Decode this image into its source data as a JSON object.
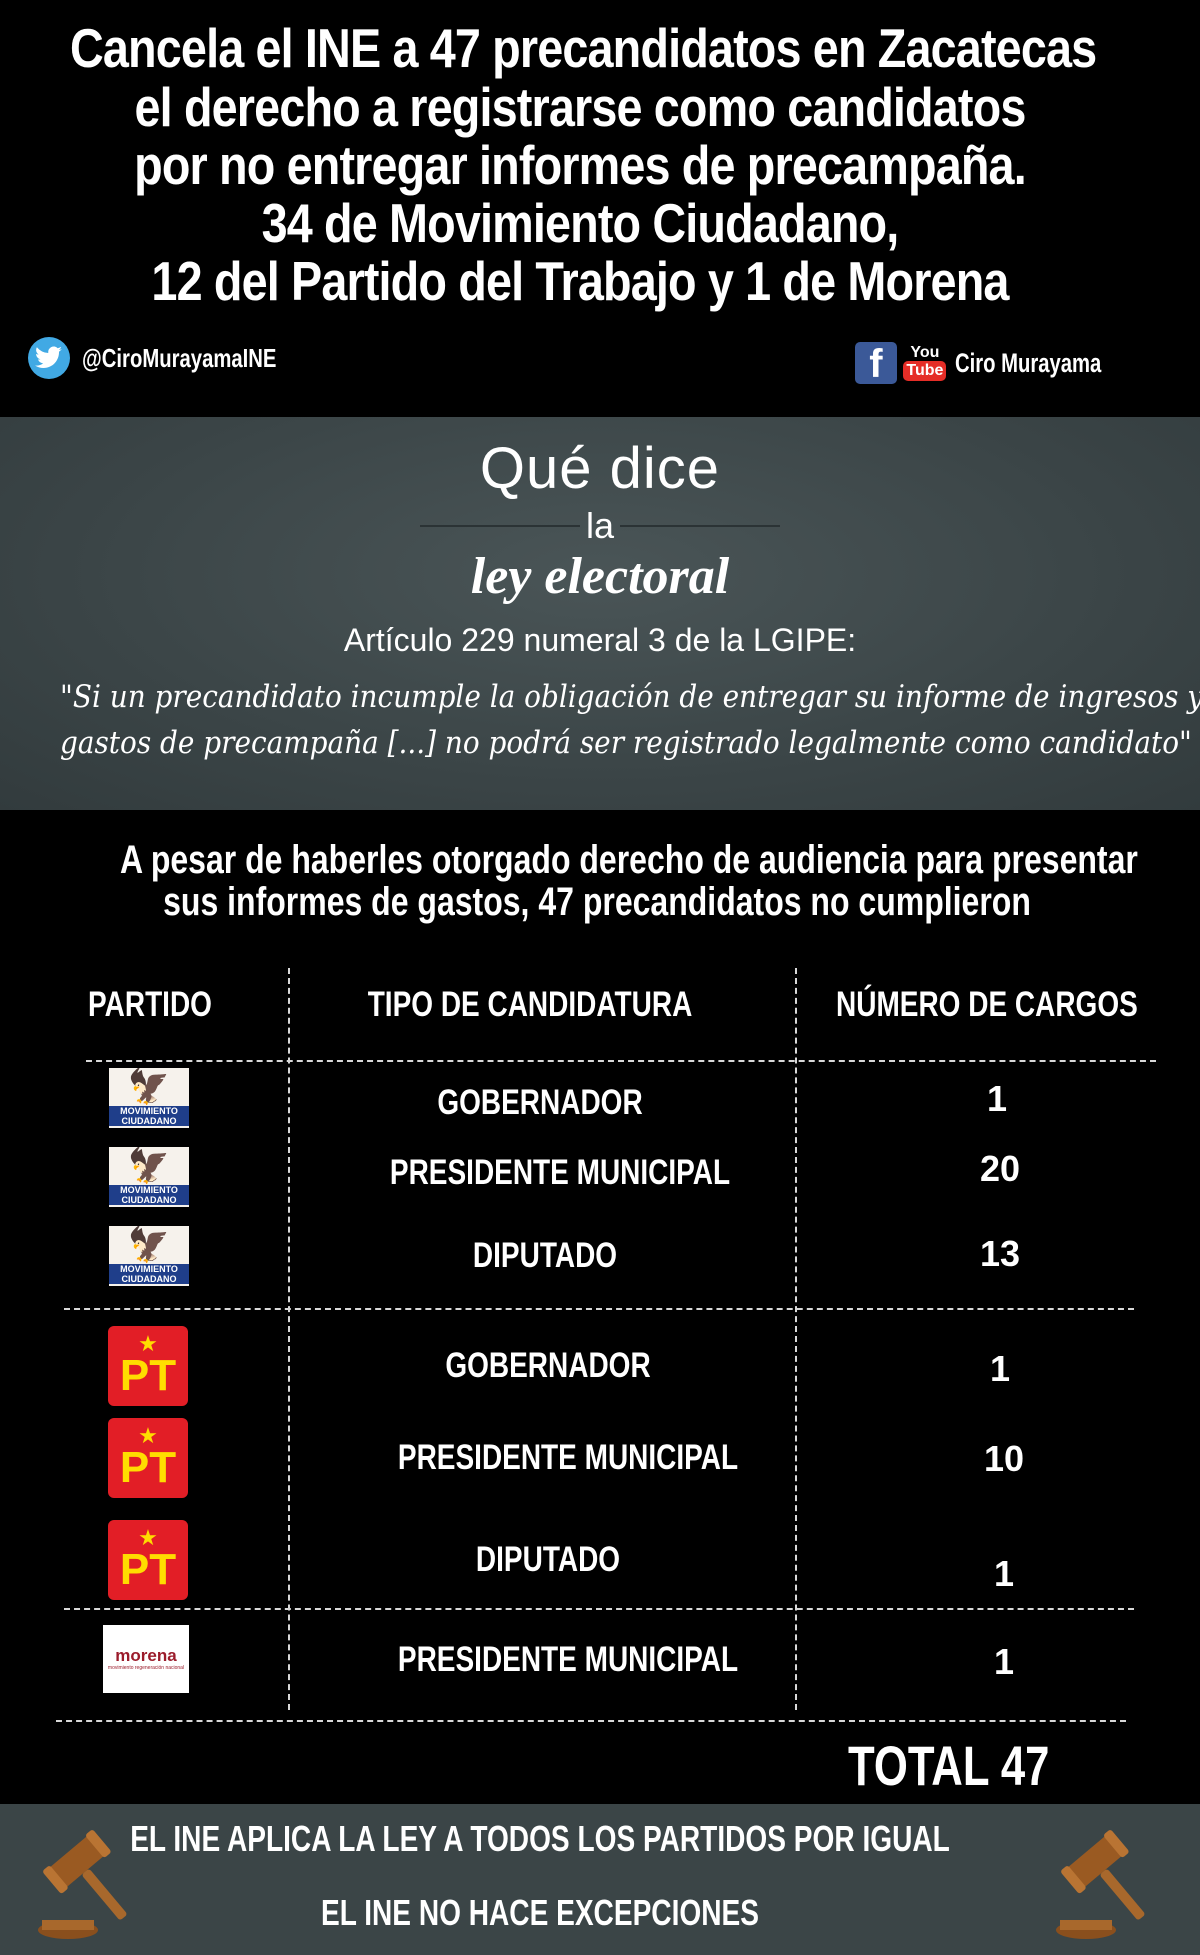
{
  "header": {
    "headline_lines": [
      "Cancela el INE a 47 precandidatos en Zacatecas",
      "el derecho a registrarse como candidatos",
      "por no entregar informes de precampaña.",
      "34 de Movimiento Ciudadano,",
      "12 del Partido del Trabajo y 1 de Morena"
    ],
    "twitter_handle": "@CiroMurayamaINE",
    "youtube_you": "You",
    "youtube_tube": "Tube",
    "facebook_glyph": "f",
    "channel_name": "Ciro Murayama"
  },
  "law": {
    "title": "Qué dice",
    "connector": "la",
    "subtitle": "ley electoral",
    "article": "Artículo 229 numeral 3 de la LGIPE:",
    "quote_line_1": "\"Si un precandidato incumple la obligación de entregar su informe de ingresos y",
    "quote_line_2": "gastos de precampaña [...] no podrá ser registrado legalmente como candidato\""
  },
  "notice": {
    "line_1": "A pesar de haberles otorgado derecho de audiencia para presentar",
    "line_2": "sus informes de gastos, 47 precandidatos no cumplieron"
  },
  "table": {
    "headers": [
      "PARTIDO",
      "TIPO DE CANDIDATURA",
      "NÚMERO DE CARGOS"
    ],
    "rows": [
      {
        "party_logo": "MOVIMIENTO CIUDADANO",
        "type": "GOBERNADOR",
        "count": "1"
      },
      {
        "party_logo": "MOVIMIENTO CIUDADANO",
        "type": "PRESIDENTE MUNICIPAL",
        "count": "20"
      },
      {
        "party_logo": "MOVIMIENTO CIUDADANO",
        "type": "DIPUTADO",
        "count": "13"
      },
      {
        "party_logo": "PT",
        "type": "GOBERNADOR",
        "count": "1"
      },
      {
        "party_logo": "PT",
        "type": "PRESIDENTE MUNICIPAL",
        "count": "10"
      },
      {
        "party_logo": "PT",
        "type": "DIPUTADO",
        "count": "1"
      },
      {
        "party_logo": "morena",
        "type": "PRESIDENTE MUNICIPAL",
        "count": "1"
      }
    ],
    "total": "TOTAL 47",
    "logo_texts": {
      "mc": "MOVIMIENTO CIUDADANO",
      "pt": "PT",
      "pt_star": "★",
      "morena": "morena",
      "morena_small": "movimiento regeneración nacional"
    }
  },
  "footer": {
    "line_1": "EL INE APLICA LA LEY  A TODOS LOS PARTIDOS POR IGUAL",
    "line_2": "EL INE NO HACE EXCEPCIONES"
  },
  "icons": {
    "twitter": "twitter-bird-icon",
    "facebook": "facebook-icon",
    "youtube": "youtube-icon",
    "gavel": "gavel-icon",
    "mc_bird": "🦅"
  },
  "colors": {
    "background": "#000000",
    "panel": "#3b4547",
    "twitter": "#41a9e4",
    "facebook": "#3b5998",
    "youtube": "#e52d27",
    "mc_orange": "#f26a21",
    "pt_red": "#e21e26",
    "morena": "#9b1c2b"
  }
}
